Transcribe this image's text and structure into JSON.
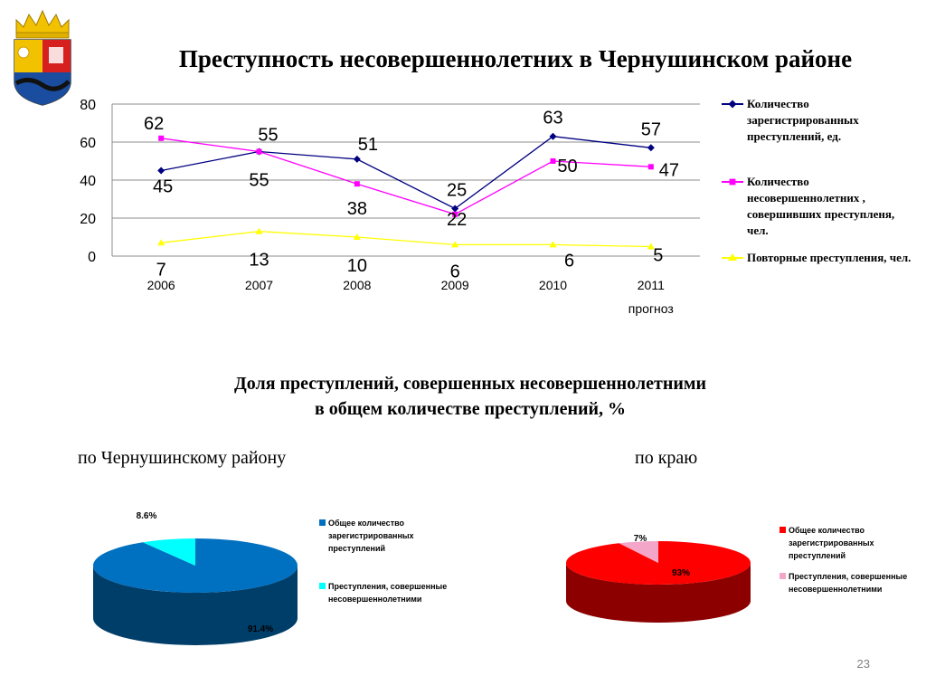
{
  "title": "Преступность несовершеннолетних в Чернушинском районе",
  "coat_of_arms_icon": "coat-of-arms-emblem",
  "chart_data": [
    {
      "type": "line",
      "categories": [
        "2006",
        "2007",
        "2008",
        "2009",
        "2010",
        "2011"
      ],
      "x_sublabels": [
        "",
        "",
        "",
        "",
        "",
        "прогноз"
      ],
      "ylim": [
        0,
        80
      ],
      "yticks": [
        0,
        20,
        40,
        60,
        80
      ],
      "grid": true,
      "legend_position": "right",
      "series": [
        {
          "name": "Количество зарегистрированных преступлений, ед.",
          "color": "#000080",
          "marker": "diamond",
          "values": [
            45,
            55,
            51,
            25,
            63,
            57
          ]
        },
        {
          "name": "Количество несовершеннолетних , совершивших преступленя, чел.",
          "color": "#ff00ff",
          "marker": "square",
          "values": [
            62,
            55,
            38,
            22,
            50,
            47
          ]
        },
        {
          "name": "Повторные преступления, чел.",
          "color": "#ffff00",
          "marker": "triangle",
          "values": [
            7,
            13,
            10,
            6,
            6,
            5
          ]
        }
      ]
    },
    {
      "type": "pie",
      "caption": "по Чернушинскому району",
      "slices": [
        {
          "label": "Общее количество зарегистрированных преступлений",
          "value": 91.4,
          "display": "91.4%",
          "color": "#0070c0"
        },
        {
          "label": "Преступления, совершенные несовершеннолетними",
          "value": 8.6,
          "display": "8.6%",
          "color": "#00ffff"
        }
      ]
    },
    {
      "type": "pie",
      "caption": "по краю",
      "slices": [
        {
          "label": "Общее количество зарегистрированных преступлений",
          "value": 93,
          "display": "93%",
          "color": "#ff0000"
        },
        {
          "label": "Преступления, совершенные несовершеннолетними",
          "value": 7,
          "display": "7%",
          "color": "#f4a6c8"
        }
      ]
    }
  ],
  "pie_section": {
    "title_line1": "Доля преступлений, совершенных несовершеннолетними",
    "title_line2": "в общем количестве преступлений, %"
  },
  "page_number": "23"
}
